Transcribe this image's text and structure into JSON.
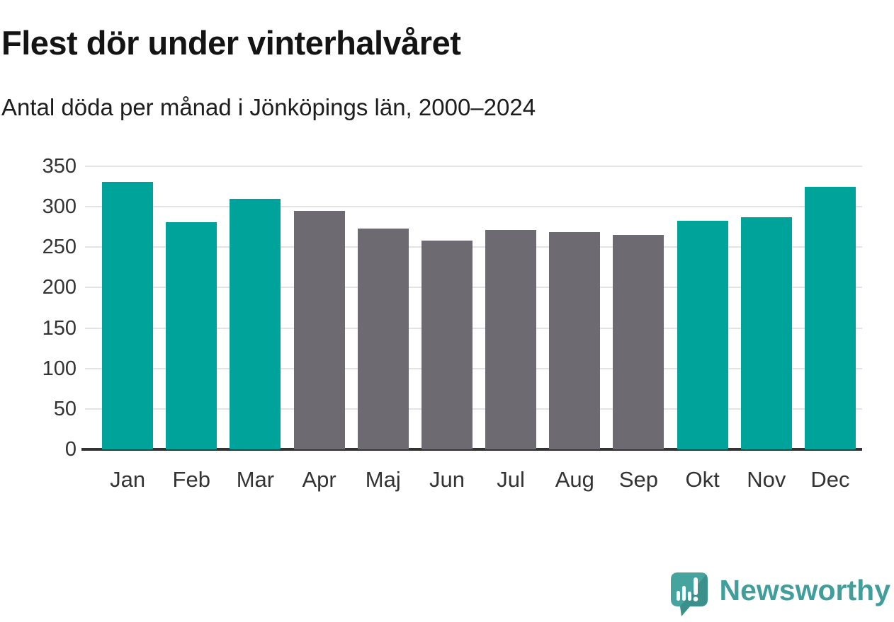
{
  "header": {
    "title": "Flest dör under vinterhalvåret",
    "subtitle": "Antal döda per månad i Jönköpings län, 2000–2024"
  },
  "chart_data": {
    "type": "bar",
    "title": "Flest dör under vinterhalvåret",
    "subtitle": "Antal döda per månad i Jönköpings län, 2000–2024",
    "categories": [
      "Jan",
      "Feb",
      "Mar",
      "Apr",
      "Maj",
      "Jun",
      "Jul",
      "Aug",
      "Sep",
      "Okt",
      "Nov",
      "Dec"
    ],
    "values": [
      331,
      281,
      310,
      295,
      273,
      258,
      271,
      269,
      265,
      283,
      287,
      325
    ],
    "highlighted": [
      true,
      true,
      true,
      false,
      false,
      false,
      false,
      false,
      false,
      true,
      true,
      true
    ],
    "xlabel": "",
    "ylabel": "",
    "ylim": [
      0,
      350
    ],
    "yticks": [
      0,
      50,
      100,
      150,
      200,
      250,
      300,
      350
    ],
    "grid": "horizontal",
    "legend": "none",
    "colors": {
      "highlight": "#00a39a",
      "neutral": "#6d6a71",
      "gridline": "#e3e3e3",
      "axis": "#333333",
      "tick_text": "#333333"
    }
  },
  "footer": {
    "brand": "Newsworthy",
    "brand_color": "#419e9b",
    "logo_icon": "newsworthy-speech-bubble-bar-chart-icon",
    "logo_color": "#46a49f"
  }
}
